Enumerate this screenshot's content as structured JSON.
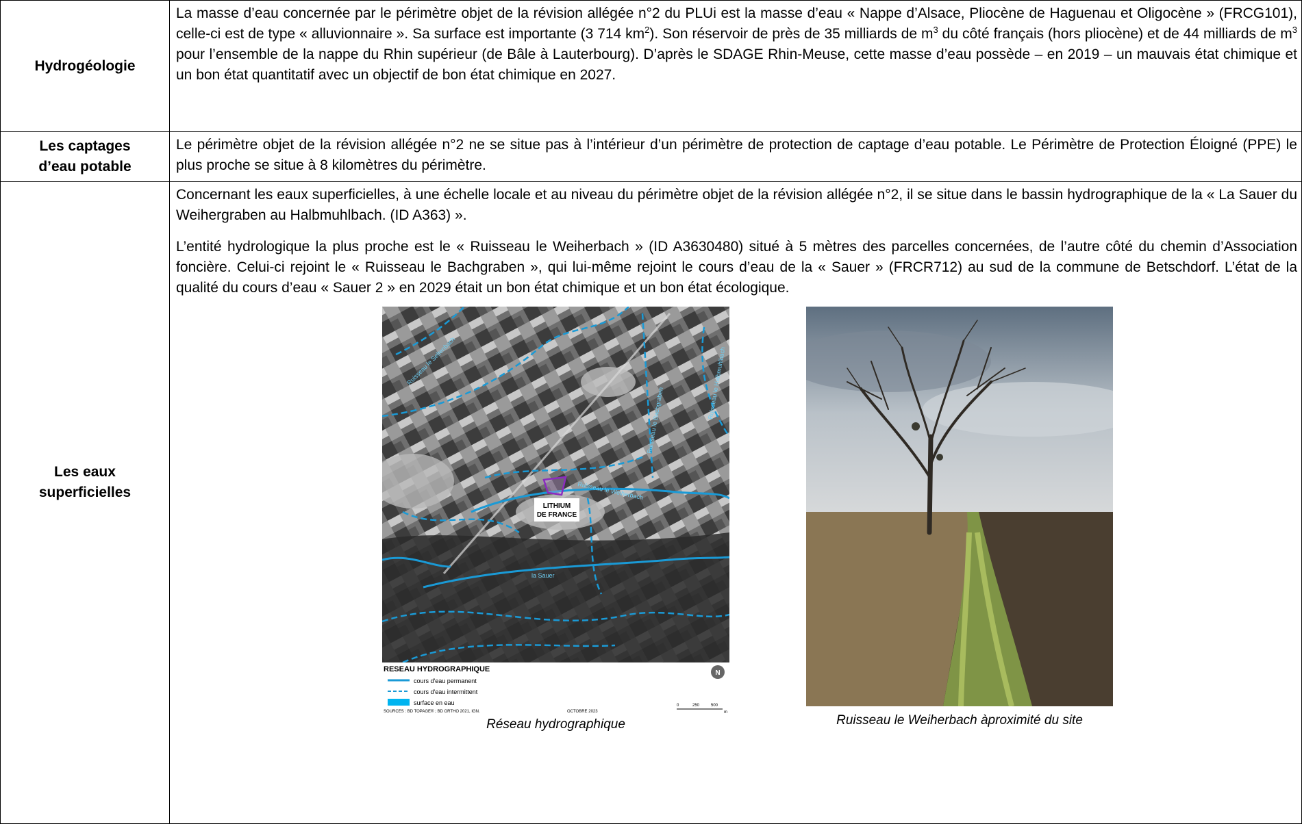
{
  "rows": [
    {
      "label": "Hydrogéologie",
      "text_parts": [
        "La masse d’eau concernée par le périmètre objet de la révision allégée n°2 du PLUi est la masse d’eau « Nappe d’Alsace, Pliocène de Haguenau et Oligocène » (FRCG101), celle-ci est de type « alluvionnaire ». Sa surface est importante (3 714 km",
        "2",
        "). Son réservoir de près de 35 milliards de m",
        "3",
        " du côté français (hors pliocène) et de 44 milliards de m",
        "3",
        " pour l’ensemble de la nappe du Rhin supérieur (de Bâle à Lauterbourg). D’après le SDAGE Rhin-Meuse, cette masse d’eau possède – en 2019 – un mauvais état chimique et un bon état quantitatif avec un objectif de bon état chimique en 2027."
      ]
    },
    {
      "label_line1": "Les captages",
      "label_line2": "d’eau potable",
      "text": "Le périmètre objet de la révision allégée n°2 ne se situe pas à l’intérieur d’un périmètre de protection de captage d’eau potable. Le Périmètre de Protection Éloigné (PPE) le plus proche se situe à 8 kilomètres du périmètre."
    },
    {
      "label_line1": "Les eaux",
      "label_line2": "superficielles",
      "paragraph1": "Concernant les eaux superficielles, à une échelle locale et au niveau du périmètre objet de la révision allégée n°2, il se situe dans le bassin hydrographique de la « La Sauer du Weihergraben au Halbmuhlbach. (ID A363) ».",
      "paragraph2": "L’entité hydrologique la plus proche est le « Ruisseau le Weiherbach » (ID A3630480) situé à 5 mètres des parcelles concernées, de l’autre côté du chemin d’Association foncière. Celui-ci rejoint le « Ruisseau le Bachgraben », qui lui-même rejoint le cours d’eau de la « Sauer » (FRCR712) au sud de la commune de Betschdorf. L’état de la qualité du cours d’eau « Sauer 2 » en 2029 était un bon état chimique et un bon état écologique."
    }
  ],
  "map": {
    "labels": {
      "ruisseau_nw": "Ruisseau le Seltenbach",
      "bachgraben": "Ruisseau le Bachgraben",
      "ruisseau_ne": "Ruisseau le Halbmuhlbach",
      "weiherbach": "Ruisseau le Weiherbach",
      "sauer": "la Sauer",
      "site_line1": "LITHIUM",
      "site_line2": "DE FRANCE"
    },
    "legend": {
      "title": "RESEAU HYDROGRAPHIQUE",
      "items": [
        "cours d'eau permanent",
        "cours d'eau intermittent",
        "surface en eau"
      ],
      "sources": "SOURCES : BD TOPAGE® ; BD ORTHO 2021, IGN.",
      "date": "OCTOBRE 2023",
      "scale": [
        "0",
        "250",
        "500"
      ],
      "scale_unit": "m"
    },
    "colors": {
      "river": "#1a9ad6",
      "site": "#8b2bbf",
      "water": "#00b4f0"
    }
  },
  "captions": {
    "map": "Réseau hydrographique",
    "photo": "Ruisseau  le  Weiherbach  àproximité du site"
  }
}
